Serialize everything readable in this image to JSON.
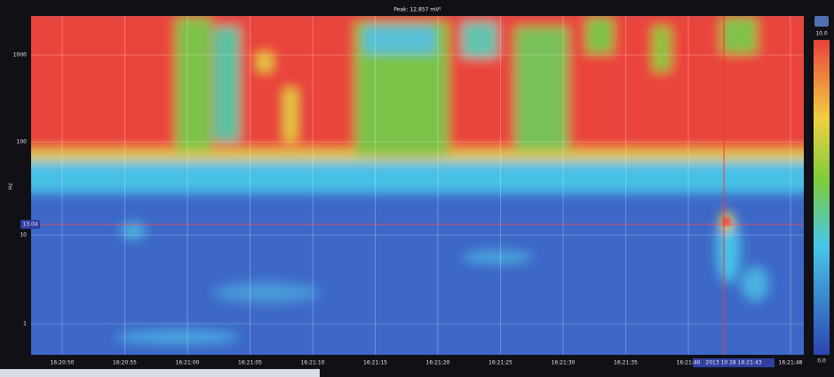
{
  "header": {
    "title": "Peak: 12.857 mV²"
  },
  "y_axis": {
    "label": "Hz",
    "ticks": [
      "1000",
      "100",
      "10",
      "1"
    ]
  },
  "x_axis": {
    "ticks": [
      "16:20:50",
      "16:20:55",
      "16:21:00",
      "16:21:05",
      "16:21:10",
      "16:21:15",
      "16:21:20",
      "16:21:25",
      "16:21:30",
      "16:21:35",
      "16:21:40",
      "16:21:48"
    ]
  },
  "cursor": {
    "y_label": "13.04",
    "x_label": "2013 10 28 16:21:43"
  },
  "colorbar": {
    "top": "10.0",
    "bottom": "0.0"
  }
}
